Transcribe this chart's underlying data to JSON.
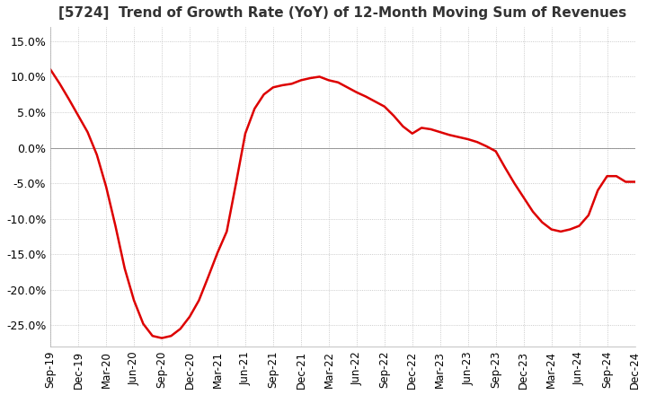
{
  "title": "[5724]  Trend of Growth Rate (YoY) of 12-Month Moving Sum of Revenues",
  "line_color": "#dd0000",
  "background_color": "#ffffff",
  "plot_bg_color": "#ffffff",
  "grid_color": "#bbbbbb",
  "ylim": [
    -0.28,
    0.17
  ],
  "yticks": [
    0.15,
    0.1,
    0.05,
    0.0,
    -0.05,
    -0.1,
    -0.15,
    -0.2,
    -0.25
  ],
  "values": [
    0.11,
    0.09,
    0.068,
    0.045,
    0.022,
    -0.01,
    -0.055,
    -0.11,
    -0.17,
    -0.215,
    -0.248,
    -0.265,
    -0.268,
    -0.265,
    -0.255,
    -0.238,
    -0.215,
    -0.182,
    -0.148,
    -0.118,
    -0.05,
    0.02,
    0.055,
    0.075,
    0.085,
    0.088,
    0.09,
    0.095,
    0.098,
    0.1,
    0.095,
    0.092,
    0.085,
    0.078,
    0.072,
    0.065,
    0.058,
    0.045,
    0.03,
    0.02,
    0.028,
    0.026,
    0.022,
    0.018,
    0.015,
    0.012,
    0.008,
    0.002,
    -0.005,
    -0.028,
    -0.05,
    -0.07,
    -0.09,
    -0.105,
    -0.115,
    -0.118,
    -0.115,
    -0.11,
    -0.095,
    -0.06,
    -0.04,
    -0.04,
    -0.048,
    -0.048
  ],
  "xtick_positions": [
    0,
    3,
    6,
    9,
    12,
    15,
    18,
    21,
    24,
    27,
    30,
    33,
    36,
    39,
    42,
    45,
    48,
    51,
    54,
    57,
    60,
    63
  ],
  "xtick_labels": [
    "Sep-19",
    "Dec-19",
    "Mar-20",
    "Jun-20",
    "Sep-20",
    "Dec-20",
    "Mar-21",
    "Jun-21",
    "Sep-21",
    "Dec-21",
    "Mar-22",
    "Jun-22",
    "Sep-22",
    "Dec-22",
    "Mar-23",
    "Jun-23",
    "Sep-23",
    "Dec-23",
    "Mar-24",
    "Jun-24",
    "Sep-24",
    "Dec-24"
  ]
}
